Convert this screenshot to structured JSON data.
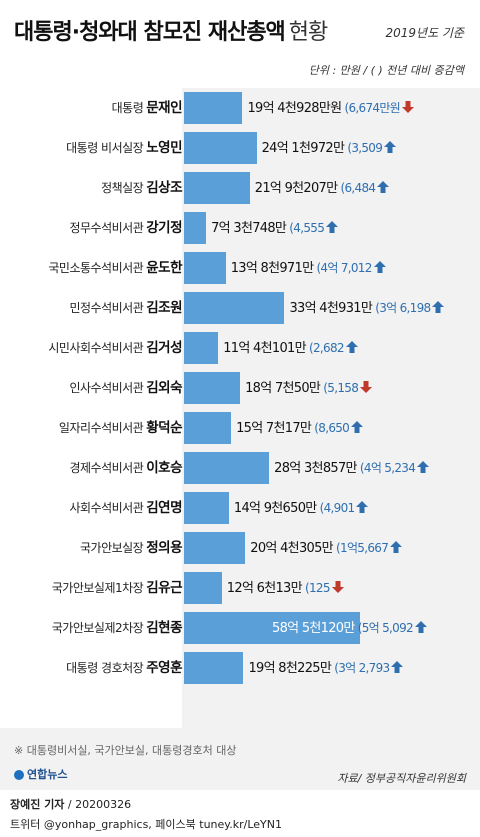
{
  "header": {
    "title": "대통령·청와대 참모진 재산총액",
    "title_suffix": "현황",
    "year_note": "2019년도 기준",
    "unit_note": "단위 : 만원 / ( ) 전년 대비 증감액"
  },
  "chart_data": {
    "type": "bar",
    "orientation": "horizontal",
    "unit": "만원",
    "xlim": [
      0,
      600000
    ],
    "colors": {
      "bar": "#5b9fd8",
      "change_text": "#2f6fb0",
      "up_arrow": "#2f6fb0",
      "down_arrow": "#c0392b"
    },
    "rows": [
      {
        "role": "대통령",
        "name": "문재인",
        "value": 194928,
        "label": "19억 4천928만원",
        "change": "6,674만원",
        "direction": "down"
      },
      {
        "role": "대통령 비서실장",
        "name": "노영민",
        "value": 241972,
        "label": "24억 1천972만",
        "change": "3,509",
        "direction": "up"
      },
      {
        "role": "정책실장",
        "name": "김상조",
        "value": 219207,
        "label": "21억 9천207만",
        "change": "6,484",
        "direction": "up"
      },
      {
        "role": "정무수석비서관",
        "name": "강기정",
        "value": 73748,
        "label": "7억 3천748만",
        "change": "4,555",
        "direction": "up"
      },
      {
        "role": "국민소통수석비서관",
        "name": "윤도한",
        "value": 138971,
        "label": "13억 8천971만",
        "change": "4억 7,012",
        "direction": "up"
      },
      {
        "role": "민정수석비서관",
        "name": "김조원",
        "value": 334931,
        "label": "33억 4천931만",
        "change": "3억 6,198",
        "direction": "up"
      },
      {
        "role": "시민사회수석비서관",
        "name": "김거성",
        "value": 114101,
        "label": "11억 4천101만",
        "change": "2,682",
        "direction": "up"
      },
      {
        "role": "인사수석비서관",
        "name": "김외숙",
        "value": 187050,
        "label": "18억 7천50만",
        "change": "5,158",
        "direction": "down"
      },
      {
        "role": "일자리수석비서관",
        "name": "황덕순",
        "value": 157017,
        "label": "15억 7천17만",
        "change": "8,650",
        "direction": "up"
      },
      {
        "role": "경제수석비서관",
        "name": "이호승",
        "value": 283857,
        "label": "28억 3천857만",
        "change": "4억 5,234",
        "direction": "up"
      },
      {
        "role": "사회수석비서관",
        "name": "김연명",
        "value": 149650,
        "label": "14억 9천650만",
        "change": "4,901",
        "direction": "up"
      },
      {
        "role": "국가안보실장",
        "name": "정의용",
        "value": 204305,
        "label": "20억 4천305만",
        "change": "1억5,667",
        "direction": "up"
      },
      {
        "role": "국가안보실제1차장",
        "name": "김유근",
        "value": 126013,
        "label": "12억 6천13만",
        "change": "125",
        "direction": "down"
      },
      {
        "role": "국가안보실제2차장",
        "name": "김현종",
        "value": 585120,
        "label": "58억 5천120만",
        "change": "5억 5,092",
        "direction": "up"
      },
      {
        "role": "대통령 경호처장",
        "name": "주영훈",
        "value": 198225,
        "label": "19억 8천225만",
        "change": "3억 2,793",
        "direction": "up"
      }
    ]
  },
  "footer": {
    "footnote": "※ 대통령비서실, 국가안보실, 대통령경호처 대상",
    "logo_text": "연합뉴스",
    "source": "자료/ 정부공직자윤리위원회",
    "reporter": "장예진 기자",
    "date": " / 20200326",
    "social": "트위터 @yonhap_graphics, 페이스북 tuney.kr/LeYN1"
  }
}
